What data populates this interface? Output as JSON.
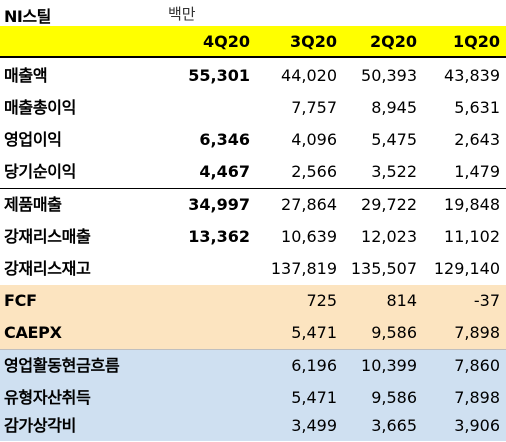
{
  "title": "NI스틸",
  "unit": "백만",
  "headers": [
    "4Q20",
    "3Q20",
    "2Q20",
    "1Q20"
  ],
  "rows": [
    {
      "label": "매출액",
      "values": [
        "55,301",
        "44,020",
        "50,393",
        "43,839"
      ]
    },
    {
      "label": "매출총이익",
      "values": [
        "",
        "7,757",
        "8,945",
        "5,631"
      ]
    },
    {
      "label": "영업이익",
      "values": [
        "6,346",
        "4,096",
        "5,475",
        "2,643"
      ]
    },
    {
      "label": "당기순이익",
      "values": [
        "4,467",
        "2,566",
        "3,522",
        "1,479"
      ]
    },
    {
      "label": "제품매출",
      "values": [
        "34,997",
        "27,864",
        "29,722",
        "19,848"
      ]
    },
    {
      "label": "강재리스매출",
      "values": [
        "13,362",
        "10,639",
        "12,023",
        "11,102"
      ]
    },
    {
      "label": "강재리스재고",
      "values": [
        "",
        "137,819",
        "135,507",
        "129,140"
      ]
    },
    {
      "label": "FCF",
      "values": [
        "",
        "725",
        "814",
        "-37"
      ]
    },
    {
      "label": "CAEPX",
      "values": [
        "",
        "5,471",
        "9,586",
        "7,898"
      ]
    },
    {
      "label": "영업활동현금흐름",
      "values": [
        "",
        "6,196",
        "10,399",
        "7,860"
      ]
    },
    {
      "label": "유형자산취득",
      "values": [
        "",
        "5,471",
        "9,586",
        "7,898"
      ]
    },
    {
      "label": "감가상각비",
      "values": [
        "",
        "3,499",
        "3,665",
        "3,906"
      ]
    }
  ],
  "colors": {
    "header_bg": "#ffff00",
    "cashflow_bg": "#fce4c0",
    "capex_bg": "#cfe0f1"
  }
}
